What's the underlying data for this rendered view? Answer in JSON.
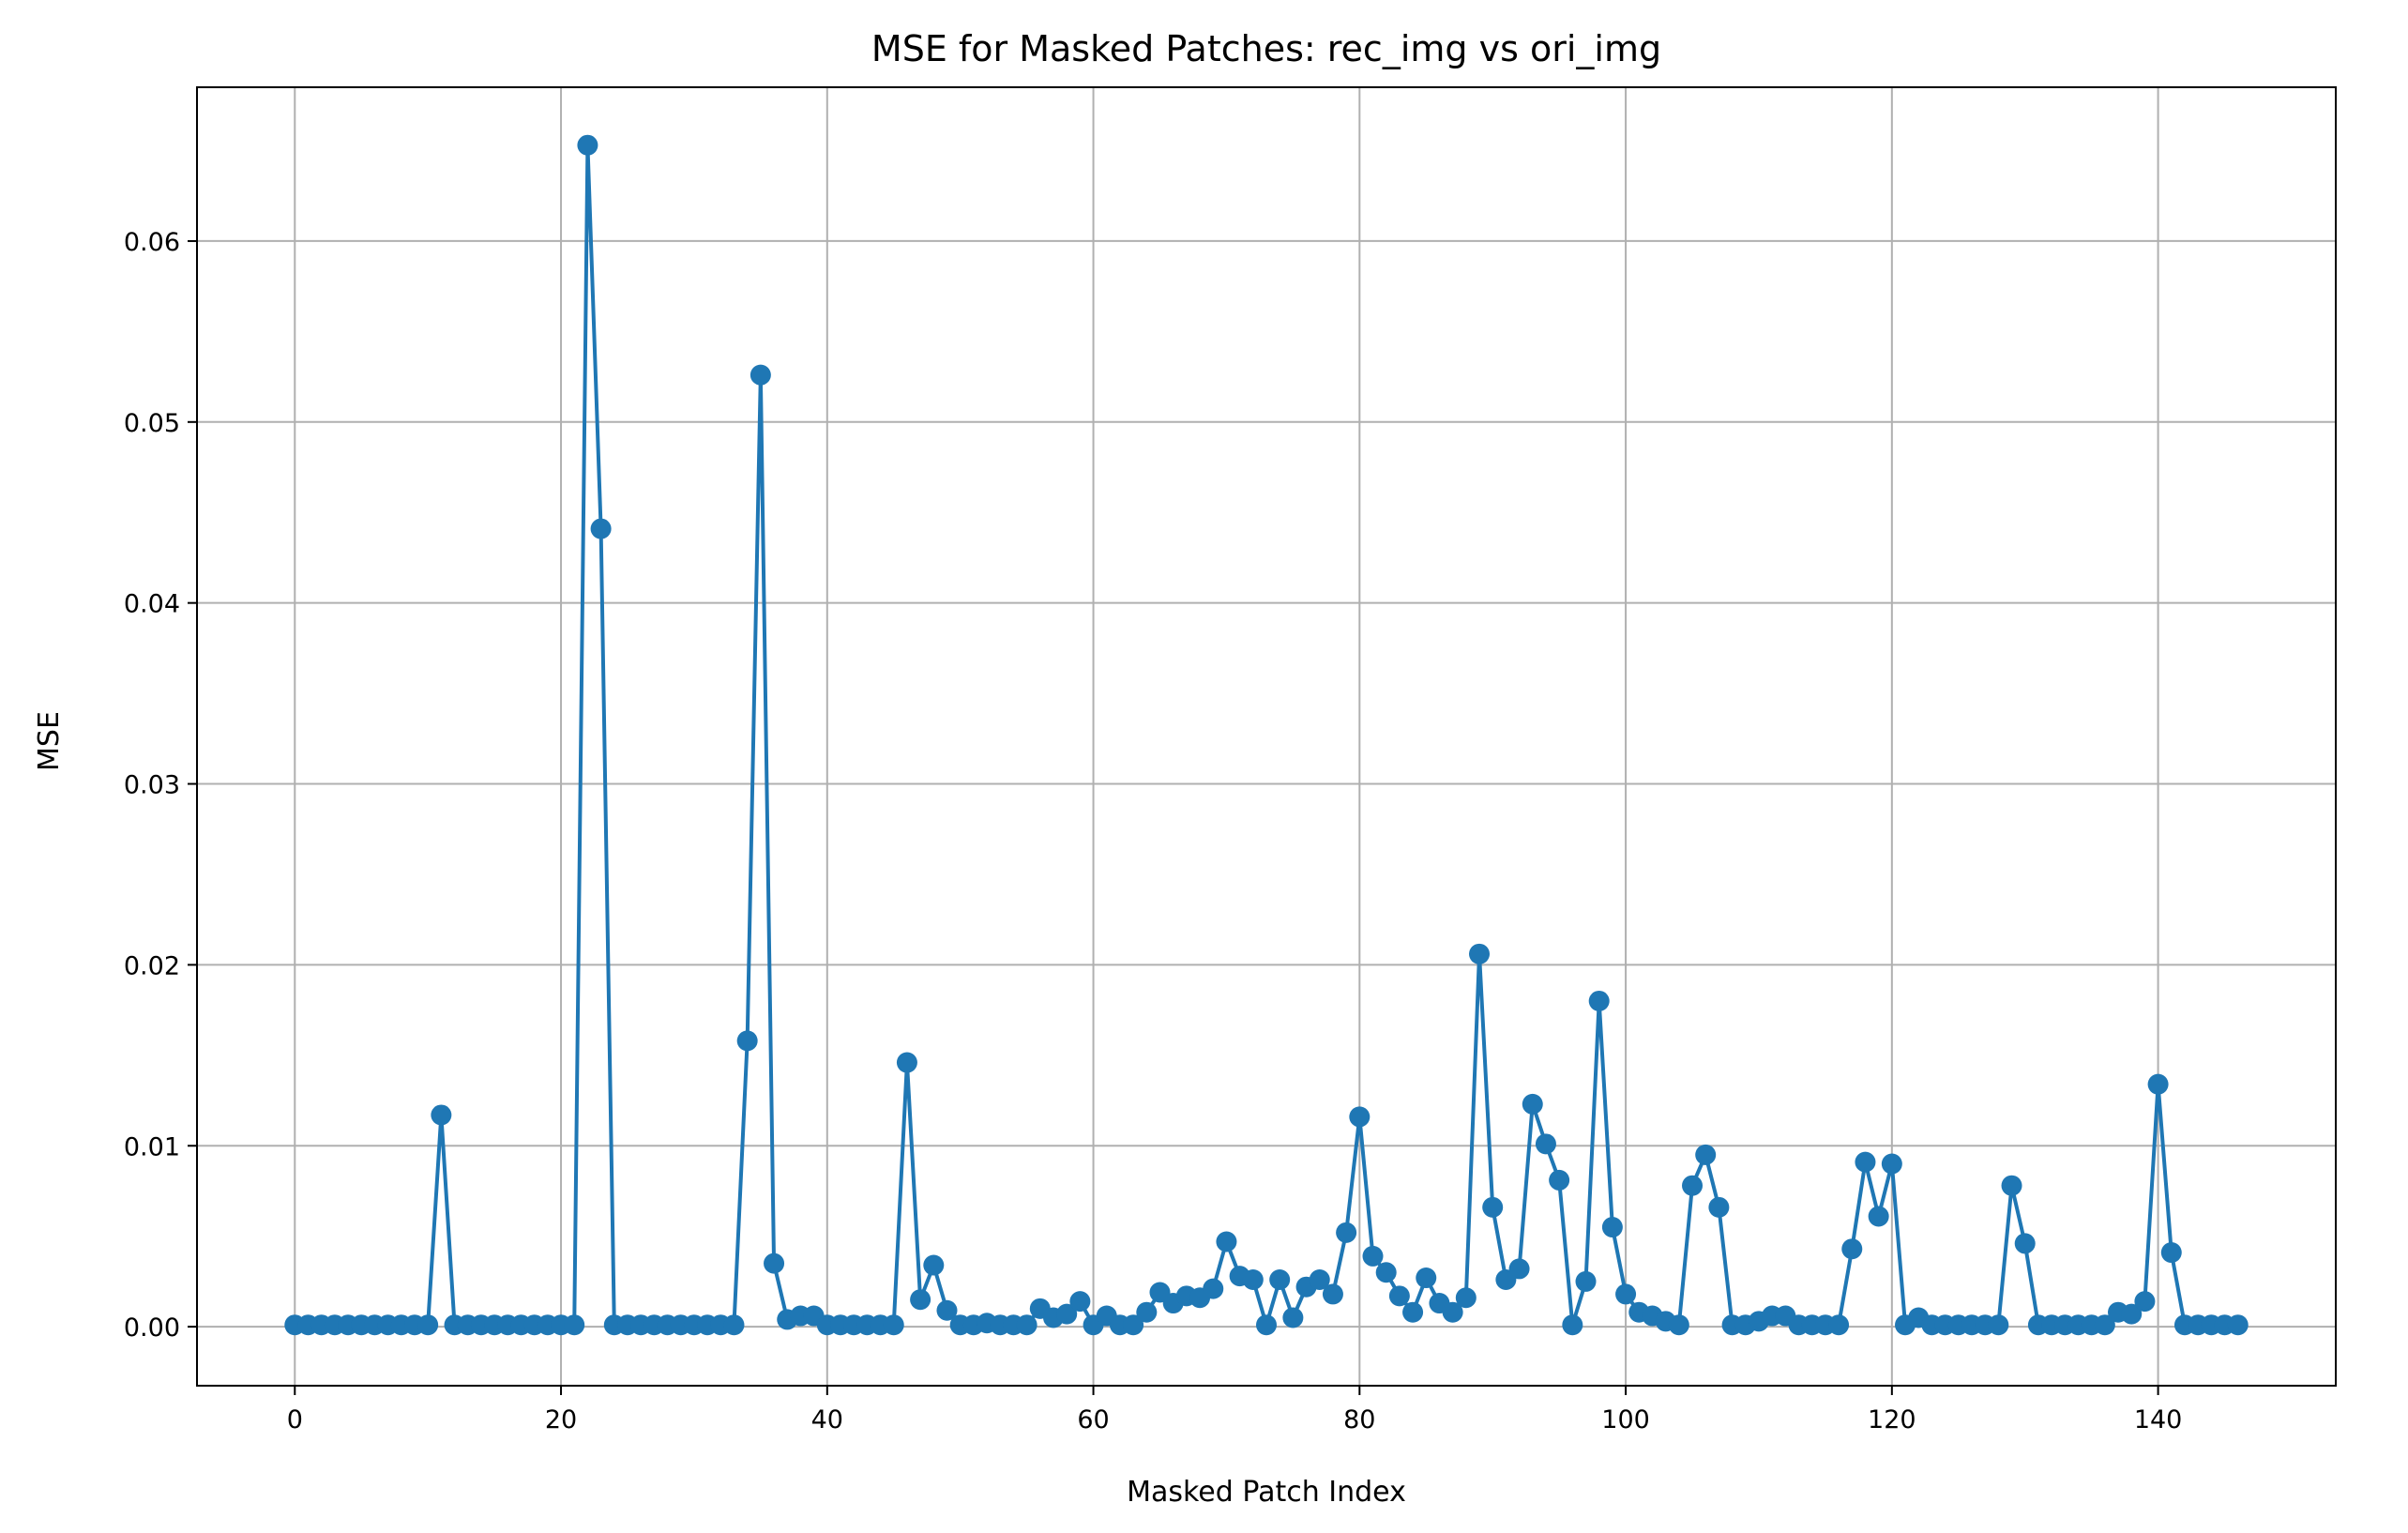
{
  "chart_data": {
    "type": "line",
    "title": "MSE for Masked Patches: rec_img vs ori_img",
    "xlabel": "Masked Patch Index",
    "ylabel": "MSE",
    "xlim": [
      -7.35,
      153.35
    ],
    "ylim": [
      -0.00326,
      0.0685
    ],
    "xticks": [
      0,
      20,
      40,
      60,
      80,
      100,
      120,
      140
    ],
    "yticks": [
      0.0,
      0.01,
      0.02,
      0.03,
      0.04,
      0.05,
      0.06
    ],
    "ytick_labels": [
      "0.00",
      "0.01",
      "0.02",
      "0.03",
      "0.04",
      "0.05",
      "0.06"
    ],
    "grid": true,
    "legend": "none",
    "marker": "circle",
    "color": "#1f77b4",
    "series": [
      {
        "x": [
          0,
          1,
          2,
          3,
          4,
          5,
          6,
          7,
          8,
          9,
          10,
          11,
          12,
          13,
          14,
          15,
          16,
          17,
          18,
          19,
          20,
          21,
          22,
          23,
          24,
          25,
          26,
          27,
          28,
          29,
          30,
          31,
          32,
          33,
          34,
          35,
          36,
          37,
          38,
          39,
          40,
          41,
          42,
          43,
          44,
          45,
          46,
          47,
          48,
          49,
          50,
          51,
          52,
          53,
          54,
          55,
          56,
          57,
          58,
          59,
          60,
          61,
          62,
          63,
          64,
          65,
          66,
          67,
          68,
          69,
          70,
          71,
          72,
          73,
          74,
          75,
          76,
          77,
          78,
          79,
          80,
          81,
          82,
          83,
          84,
          85,
          86,
          87,
          88,
          89,
          90,
          91,
          92,
          93,
          94,
          95,
          96,
          97,
          98,
          99,
          100,
          101,
          102,
          103,
          104,
          105,
          106,
          107,
          108,
          109,
          110,
          111,
          112,
          113,
          114,
          115,
          116,
          117,
          118,
          119,
          120,
          121,
          122,
          123,
          124,
          125,
          126,
          127,
          128,
          129,
          130,
          131,
          132,
          133,
          134,
          135,
          136,
          137,
          138,
          139,
          140,
          141,
          142,
          143,
          144,
          145,
          146
        ],
        "values": [
          0.0001,
          0.0001,
          0.0001,
          0.0001,
          0.0001,
          0.0001,
          0.0001,
          0.0001,
          0.0001,
          0.0001,
          0.0001,
          0.0117,
          0.0001,
          0.0001,
          0.0001,
          0.0001,
          0.0001,
          0.0001,
          0.0001,
          0.0001,
          0.0001,
          0.0001,
          0.0653,
          0.0441,
          0.0001,
          0.0001,
          0.0001,
          0.0001,
          0.0001,
          0.0001,
          0.0001,
          0.0001,
          0.0001,
          0.0001,
          0.0158,
          0.0526,
          0.0035,
          0.0004,
          0.0006,
          0.0006,
          0.0001,
          0.0001,
          0.0001,
          0.0001,
          0.0001,
          0.0001,
          0.0146,
          0.0015,
          0.0034,
          0.0009,
          0.0001,
          0.0001,
          0.0002,
          0.0001,
          0.0001,
          0.0001,
          0.001,
          0.0005,
          0.0007,
          0.0014,
          0.0001,
          0.0006,
          0.0001,
          0.0001,
          0.0008,
          0.0019,
          0.0013,
          0.0017,
          0.0016,
          0.0021,
          0.0047,
          0.0028,
          0.0026,
          0.0001,
          0.0026,
          0.0005,
          0.0022,
          0.0026,
          0.0018,
          0.0052,
          0.0116,
          0.0039,
          0.003,
          0.0017,
          0.0008,
          0.0027,
          0.0013,
          0.0008,
          0.0016,
          0.0206,
          0.0066,
          0.0026,
          0.0032,
          0.0123,
          0.0101,
          0.0081,
          0.0001,
          0.0025,
          0.018,
          0.0055,
          0.0018,
          0.0008,
          0.0006,
          0.0003,
          0.0001,
          0.0078,
          0.0095,
          0.0066,
          0.0001,
          0.0001,
          0.0003,
          0.0006,
          0.0006,
          0.0001,
          0.0001,
          0.0001,
          0.0001,
          0.0043,
          0.0091,
          0.0061,
          0.009,
          0.0001,
          0.0005,
          0.0001,
          0.0001,
          0.0001,
          0.0001,
          0.0001,
          0.0001,
          0.0078,
          0.0046,
          0.0001,
          0.0001,
          0.0001,
          0.0001,
          0.0001,
          0.0001,
          0.0008,
          0.0007,
          0.0014,
          0.0134,
          0.0041,
          0.0001,
          0.0001,
          0.0001,
          0.0001,
          0.0001
        ]
      }
    ]
  }
}
